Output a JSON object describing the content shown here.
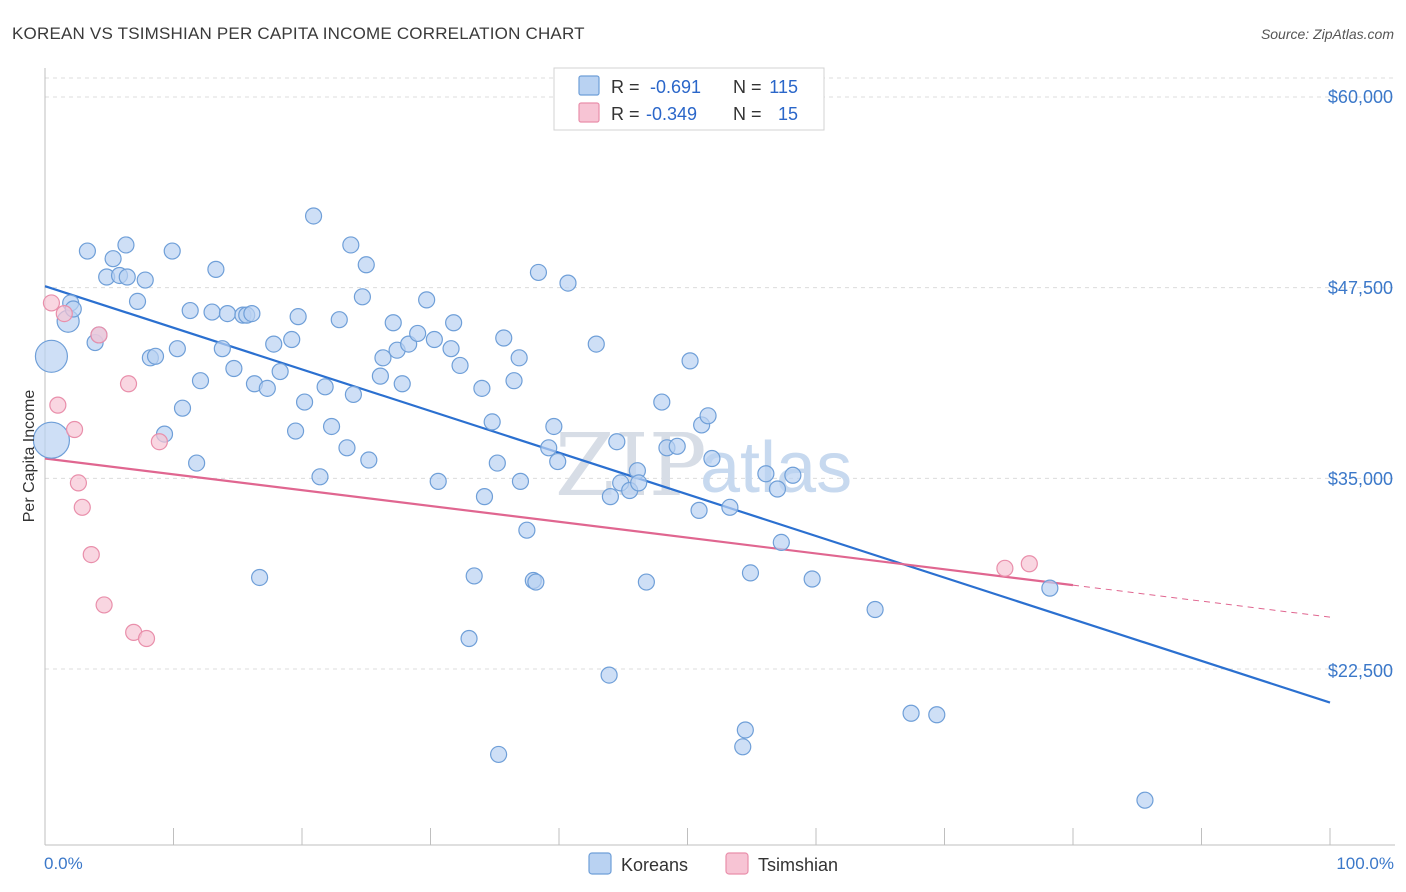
{
  "title": "KOREAN VS TSIMSHIAN PER CAPITA INCOME CORRELATION CHART",
  "source": "Source: ZipAtlas.com",
  "watermark": {
    "zip": "ZIP",
    "atlas": "atlas"
  },
  "colors": {
    "koreans_fill": "#b9d2f2",
    "koreans_stroke": "#6f9fd8",
    "koreans_line": "#2b70d0",
    "tsimshian_fill": "#f7c4d4",
    "tsimshian_stroke": "#e98fab",
    "tsimshian_line": "#e06690",
    "tick_text": "#3b78c9"
  },
  "legend": {
    "row1": {
      "r_label": "R =",
      "r_value": "-0.691",
      "n_label": "N =",
      "n_value": "115"
    },
    "row2": {
      "r_label": "R =",
      "r_value": "-0.349",
      "n_label": "N =",
      "n_value": "15"
    }
  },
  "bottom_legend": {
    "koreans": "Koreans",
    "tsimshian": "Tsimshian"
  },
  "chart_data": {
    "type": "scatter",
    "title": "KOREAN VS TSIMSHIAN PER CAPITA INCOME CORRELATION CHART",
    "xlabel": "",
    "ylabel": "Per Capita Income",
    "xlim": [
      0,
      100
    ],
    "ylim": [
      12000,
      62000
    ],
    "x_tick_labels": [
      "0.0%",
      "100.0%"
    ],
    "y_ticks": [
      22500,
      35000,
      47500,
      60000
    ],
    "y_tick_labels": [
      "$22,500",
      "$35,000",
      "$47,500",
      "$60,000"
    ],
    "grid": true,
    "legend_position": "top-center",
    "series": [
      {
        "name": "Koreans",
        "R": -0.691,
        "N": 115,
        "trend": {
          "x": [
            0,
            100
          ],
          "y": [
            47600,
            20300
          ]
        },
        "points": [
          [
            0.5,
            43000
          ],
          [
            0.5,
            37500
          ],
          [
            1.8,
            45300
          ],
          [
            2.0,
            46500
          ],
          [
            2.2,
            46100
          ],
          [
            3.3,
            49900
          ],
          [
            3.9,
            43900
          ],
          [
            4.2,
            44400
          ],
          [
            4.8,
            48200
          ],
          [
            5.3,
            49400
          ],
          [
            5.8,
            48300
          ],
          [
            6.4,
            48200
          ],
          [
            6.3,
            50300
          ],
          [
            7.2,
            46600
          ],
          [
            7.8,
            48000
          ],
          [
            8.2,
            42900
          ],
          [
            8.6,
            43000
          ],
          [
            9.3,
            37900
          ],
          [
            9.9,
            49900
          ],
          [
            10.3,
            43500
          ],
          [
            10.7,
            39600
          ],
          [
            11.3,
            46000
          ],
          [
            11.8,
            36000
          ],
          [
            12.1,
            41400
          ],
          [
            13.0,
            45900
          ],
          [
            13.3,
            48700
          ],
          [
            13.8,
            43500
          ],
          [
            14.2,
            45800
          ],
          [
            14.7,
            42200
          ],
          [
            15.4,
            45700
          ],
          [
            15.7,
            45700
          ],
          [
            16.1,
            45800
          ],
          [
            16.3,
            41200
          ],
          [
            16.7,
            28500
          ],
          [
            17.3,
            40900
          ],
          [
            17.8,
            43800
          ],
          [
            18.3,
            42000
          ],
          [
            19.2,
            44100
          ],
          [
            19.5,
            38100
          ],
          [
            19.7,
            45600
          ],
          [
            20.2,
            40000
          ],
          [
            20.9,
            52200
          ],
          [
            21.4,
            35100
          ],
          [
            21.8,
            41000
          ],
          [
            22.3,
            38400
          ],
          [
            22.9,
            45400
          ],
          [
            23.5,
            37000
          ],
          [
            23.8,
            50300
          ],
          [
            24.0,
            40500
          ],
          [
            24.7,
            46900
          ],
          [
            25.0,
            49000
          ],
          [
            25.2,
            36200
          ],
          [
            26.1,
            41700
          ],
          [
            26.3,
            42900
          ],
          [
            27.1,
            45200
          ],
          [
            27.4,
            43400
          ],
          [
            27.8,
            41200
          ],
          [
            28.3,
            43800
          ],
          [
            29.0,
            44500
          ],
          [
            29.7,
            46700
          ],
          [
            30.3,
            44100
          ],
          [
            30.6,
            34800
          ],
          [
            31.6,
            43500
          ],
          [
            31.8,
            45200
          ],
          [
            32.3,
            42400
          ],
          [
            33.0,
            24500
          ],
          [
            33.4,
            28600
          ],
          [
            34.0,
            40900
          ],
          [
            34.2,
            33800
          ],
          [
            34.8,
            38700
          ],
          [
            35.2,
            36000
          ],
          [
            35.7,
            44200
          ],
          [
            36.5,
            41400
          ],
          [
            36.9,
            42900
          ],
          [
            37.0,
            34800
          ],
          [
            37.5,
            31600
          ],
          [
            38.0,
            28300
          ],
          [
            38.2,
            28200
          ],
          [
            38.4,
            48500
          ],
          [
            39.2,
            37000
          ],
          [
            39.6,
            38400
          ],
          [
            39.9,
            36100
          ],
          [
            40.7,
            47800
          ],
          [
            42.9,
            43800
          ],
          [
            43.9,
            22100
          ],
          [
            44.0,
            33800
          ],
          [
            44.5,
            37400
          ],
          [
            44.8,
            34700
          ],
          [
            45.5,
            34200
          ],
          [
            46.1,
            35500
          ],
          [
            46.2,
            34700
          ],
          [
            46.8,
            28200
          ],
          [
            48.0,
            40000
          ],
          [
            48.4,
            37000
          ],
          [
            49.2,
            37100
          ],
          [
            50.2,
            42700
          ],
          [
            50.9,
            32900
          ],
          [
            51.1,
            38500
          ],
          [
            51.6,
            39100
          ],
          [
            51.9,
            36300
          ],
          [
            53.3,
            33100
          ],
          [
            54.3,
            17400
          ],
          [
            54.5,
            18500
          ],
          [
            54.9,
            28800
          ],
          [
            56.1,
            35300
          ],
          [
            57.0,
            34300
          ],
          [
            57.3,
            30800
          ],
          [
            58.2,
            35200
          ],
          [
            59.7,
            28400
          ],
          [
            64.6,
            26400
          ],
          [
            67.4,
            19600
          ],
          [
            69.4,
            19500
          ],
          [
            78.2,
            27800
          ],
          [
            85.6,
            13900
          ],
          [
            35.3,
            16900
          ]
        ]
      },
      {
        "name": "Tsimshian",
        "R": -0.349,
        "N": 15,
        "trend": {
          "x": [
            0,
            80
          ],
          "y": [
            36300,
            28000
          ],
          "dashed_x": [
            80,
            100
          ],
          "dashed_y": [
            28000,
            25900
          ]
        },
        "points": [
          [
            0.5,
            46500
          ],
          [
            1.0,
            39800
          ],
          [
            1.5,
            45800
          ],
          [
            2.3,
            38200
          ],
          [
            2.6,
            34700
          ],
          [
            2.9,
            33100
          ],
          [
            3.6,
            30000
          ],
          [
            4.2,
            44400
          ],
          [
            4.6,
            26700
          ],
          [
            6.5,
            41200
          ],
          [
            6.9,
            24900
          ],
          [
            7.9,
            24500
          ],
          [
            8.9,
            37400
          ],
          [
            74.7,
            29100
          ],
          [
            76.6,
            29400
          ]
        ]
      }
    ]
  }
}
